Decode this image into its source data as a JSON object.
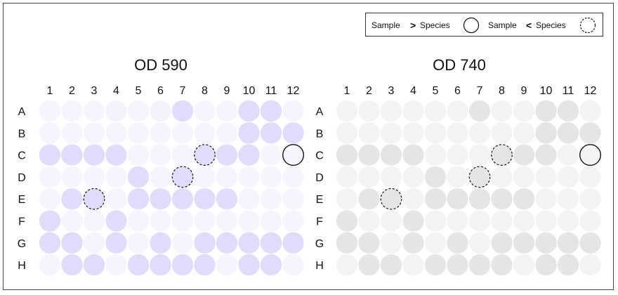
{
  "legend": {
    "gt_label": "Sample",
    "gt_symbol": ">",
    "gt_suffix": "Species",
    "lt_label": "Sample",
    "lt_symbol": "<",
    "lt_suffix": "Species"
  },
  "chart_data": [
    {
      "type": "heatmap",
      "title": "OD 590",
      "columns": [
        "1",
        "2",
        "3",
        "4",
        "5",
        "6",
        "7",
        "8",
        "9",
        "10",
        "11",
        "12"
      ],
      "rows": [
        "A",
        "B",
        "C",
        "D",
        "E",
        "F",
        "G",
        "H"
      ],
      "color_low": "#f7f5fd",
      "color_high": "#e0d9fb",
      "values": [
        [
          0.05,
          0.05,
          0.05,
          0.1,
          0.05,
          0.1,
          0.9,
          0.05,
          0.05,
          0.9,
          0.9,
          0.05
        ],
        [
          0.05,
          0.05,
          0.05,
          0.02,
          0.05,
          0.02,
          0.05,
          0.05,
          0.05,
          0.9,
          0.9,
          0.9
        ],
        [
          0.9,
          0.9,
          0.9,
          0.9,
          0.05,
          0.05,
          0.05,
          0.9,
          0.9,
          0.9,
          0.05,
          0.05
        ],
        [
          0.05,
          0.05,
          0.05,
          0.05,
          0.9,
          0.05,
          0.9,
          0.05,
          0.05,
          0.05,
          0.05,
          0.05
        ],
        [
          0.05,
          0.9,
          0.9,
          0.05,
          0.9,
          0.9,
          0.9,
          0.9,
          0.9,
          0.05,
          0.05,
          0.05
        ],
        [
          0.9,
          0.05,
          0.05,
          0.9,
          0.05,
          0.05,
          0.05,
          0.05,
          0.05,
          0.05,
          0.05,
          0.05
        ],
        [
          0.9,
          0.9,
          0.05,
          0.9,
          0.05,
          0.9,
          0.05,
          0.9,
          0.9,
          0.9,
          0.9,
          0.9
        ],
        [
          0.05,
          0.9,
          0.9,
          0.05,
          0.9,
          0.9,
          0.9,
          0.9,
          0.05,
          0.9,
          0.9,
          0.05
        ]
      ],
      "markers": [
        {
          "row": "C",
          "col": "8",
          "kind": "sample_lt_species"
        },
        {
          "row": "C",
          "col": "12",
          "kind": "sample_gt_species"
        },
        {
          "row": "D",
          "col": "7",
          "kind": "sample_lt_species"
        },
        {
          "row": "E",
          "col": "3",
          "kind": "sample_lt_species"
        }
      ]
    },
    {
      "type": "heatmap",
      "title": "OD 740",
      "columns": [
        "1",
        "2",
        "3",
        "4",
        "5",
        "6",
        "7",
        "8",
        "9",
        "10",
        "11",
        "12"
      ],
      "rows": [
        "A",
        "B",
        "C",
        "D",
        "E",
        "F",
        "G",
        "H"
      ],
      "color_low": "#f5f5f5",
      "color_high": "#e3e3e3",
      "values": [
        [
          0.1,
          0.1,
          0.1,
          0.1,
          0.1,
          0.1,
          0.9,
          0.1,
          0.1,
          0.9,
          0.9,
          0.1
        ],
        [
          0.1,
          0.1,
          0.1,
          0.1,
          0.1,
          0.1,
          0.1,
          0.1,
          0.1,
          0.9,
          0.9,
          0.9
        ],
        [
          0.9,
          0.9,
          0.9,
          0.9,
          0.1,
          0.1,
          0.1,
          0.9,
          0.9,
          0.9,
          0.1,
          0.1
        ],
        [
          0.1,
          0.1,
          0.1,
          0.1,
          0.9,
          0.1,
          0.9,
          0.1,
          0.1,
          0.1,
          0.1,
          0.1
        ],
        [
          0.1,
          0.9,
          0.9,
          0.1,
          0.9,
          0.9,
          0.9,
          0.9,
          0.9,
          0.1,
          0.1,
          0.1
        ],
        [
          0.9,
          0.1,
          0.1,
          0.9,
          0.1,
          0.1,
          0.1,
          0.1,
          0.1,
          0.1,
          0.1,
          0.1
        ],
        [
          0.9,
          0.9,
          0.1,
          0.9,
          0.1,
          0.9,
          0.1,
          0.9,
          0.9,
          0.9,
          0.9,
          0.9
        ],
        [
          0.1,
          0.9,
          0.9,
          0.1,
          0.9,
          0.9,
          0.9,
          0.9,
          0.1,
          0.9,
          0.9,
          0.1
        ]
      ],
      "markers": [
        {
          "row": "C",
          "col": "8",
          "kind": "sample_lt_species"
        },
        {
          "row": "C",
          "col": "12",
          "kind": "sample_gt_species"
        },
        {
          "row": "D",
          "col": "7",
          "kind": "sample_lt_species"
        },
        {
          "row": "E",
          "col": "3",
          "kind": "sample_lt_species"
        }
      ]
    }
  ]
}
